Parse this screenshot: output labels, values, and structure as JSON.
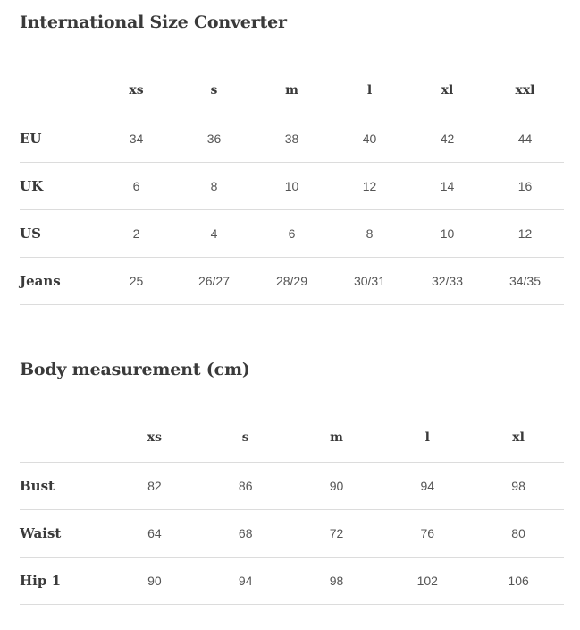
{
  "converter": {
    "title": "International Size Converter",
    "sizes": [
      "xs",
      "s",
      "m",
      "l",
      "xl",
      "xxl"
    ],
    "rows": [
      {
        "label": "EU",
        "values": [
          "34",
          "36",
          "38",
          "40",
          "42",
          "44"
        ]
      },
      {
        "label": "UK",
        "values": [
          "6",
          "8",
          "10",
          "12",
          "14",
          "16"
        ]
      },
      {
        "label": "US",
        "values": [
          "2",
          "4",
          "6",
          "8",
          "10",
          "12"
        ]
      },
      {
        "label": "Jeans",
        "values": [
          "25",
          "26/27",
          "28/29",
          "30/31",
          "32/33",
          "34/35"
        ]
      }
    ]
  },
  "measurements": {
    "title": "Body measurement (cm)",
    "sizes": [
      "xs",
      "s",
      "m",
      "l",
      "xl"
    ],
    "rows": [
      {
        "label": "Bust",
        "values": [
          "82",
          "86",
          "90",
          "94",
          "98"
        ]
      },
      {
        "label": "Waist",
        "values": [
          "64",
          "68",
          "72",
          "76",
          "80"
        ]
      },
      {
        "label": "Hip 1",
        "values": [
          "90",
          "94",
          "98",
          "102",
          "106"
        ]
      }
    ]
  }
}
